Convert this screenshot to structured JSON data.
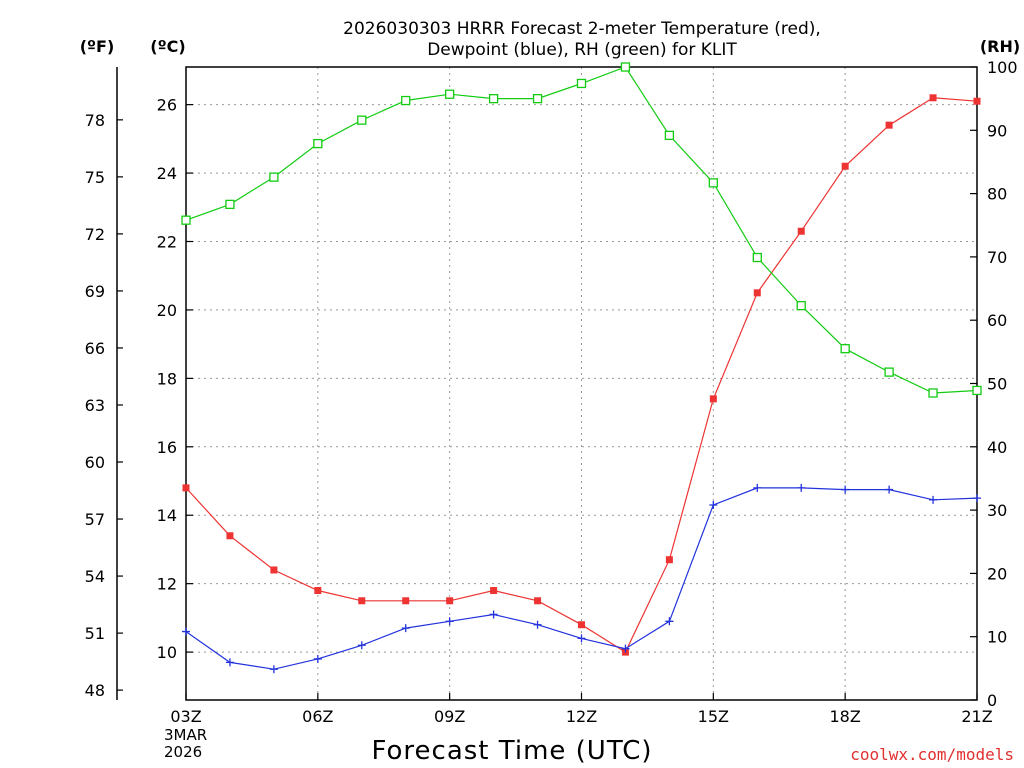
{
  "chart_data": {
    "type": "line",
    "title_line1": "2026030303 HRRR Forecast 2-meter Temperature (red),",
    "title_line2": "Dewpoint (blue), RH (green) for KLIT",
    "xlabel": "Forecast Time (UTC)",
    "unit_left_f": "(ºF)",
    "unit_left_c": "(ºC)",
    "unit_right_rh": "(RH)",
    "x_ticks": [
      "03Z",
      "06Z",
      "09Z",
      "12Z",
      "15Z",
      "18Z",
      "21Z"
    ],
    "x_tick_hours": [
      3,
      6,
      9,
      12,
      15,
      18,
      21
    ],
    "date_line1": "3MAR",
    "date_line2": "2026",
    "credit": "coolwx.com/models",
    "xlim": [
      3,
      21
    ],
    "ylim_c": [
      8.6,
      27.1
    ],
    "ylim_rh": [
      0,
      100
    ],
    "c_ticks": [
      10,
      12,
      14,
      16,
      18,
      20,
      22,
      24,
      26
    ],
    "f_ticks": [
      48,
      51,
      54,
      57,
      60,
      63,
      66,
      69,
      72,
      75,
      78
    ],
    "rh_ticks": [
      0,
      10,
      20,
      30,
      40,
      50,
      60,
      70,
      80,
      90,
      100
    ],
    "hours": [
      3,
      4,
      5,
      6,
      7,
      8,
      9,
      10,
      11,
      12,
      13,
      14,
      15,
      16,
      17,
      18,
      19,
      20,
      21
    ],
    "series": [
      {
        "name": "2-meter Temperature",
        "units": "C",
        "axis": "c",
        "color": "#ee3333",
        "marker": "filled-square",
        "values": [
          14.8,
          13.4,
          12.4,
          11.8,
          11.5,
          11.5,
          11.5,
          11.8,
          11.5,
          10.8,
          10.0,
          12.7,
          17.4,
          20.5,
          22.3,
          24.2,
          25.4,
          26.2,
          26.1
        ]
      },
      {
        "name": "Dewpoint",
        "units": "C",
        "axis": "c",
        "color": "#2233dd",
        "marker": "plus",
        "values": [
          10.6,
          9.7,
          9.5,
          9.8,
          10.2,
          10.7,
          10.9,
          11.1,
          10.8,
          10.4,
          10.1,
          10.9,
          14.3,
          14.8,
          14.8,
          14.75,
          14.75,
          14.45,
          14.5
        ]
      },
      {
        "name": "RH",
        "units": "%",
        "axis": "rh",
        "color": "#11cc11",
        "marker": "open-square",
        "values": [
          75.8,
          78.3,
          82.6,
          87.9,
          91.6,
          94.7,
          95.7,
          95.0,
          95.0,
          97.4,
          100.0,
          89.2,
          81.7,
          69.9,
          62.3,
          55.5,
          51.8,
          48.5,
          48.9
        ]
      }
    ],
    "grid": true,
    "legend": "in title"
  }
}
